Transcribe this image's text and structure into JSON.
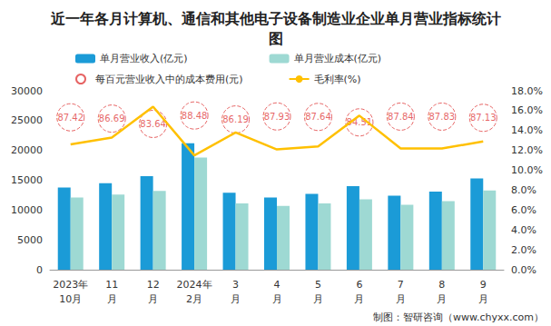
{
  "chart_data": {
    "type": "bar",
    "title": "近一年各月计算机、通信和其他电子设备制造业企业单月营业指标统计图",
    "categories": [
      "2023年\n10月",
      "11\n月",
      "12\n月",
      "2024年\n2月",
      "3\n月",
      "4\n月",
      "5\n月",
      "6\n月",
      "7\n月",
      "8\n月",
      "9\n月"
    ],
    "series": [
      {
        "name": "单月营业收入(亿元)",
        "type": "bar",
        "color": "#1b9bd7",
        "values": [
          13800,
          14500,
          15700,
          21200,
          12900,
          12100,
          12700,
          14000,
          12400,
          13100,
          15300
        ]
      },
      {
        "name": "单月营业成本(亿元)",
        "type": "bar",
        "color": "#9ed9d3",
        "values": [
          12100,
          12600,
          13200,
          18800,
          11100,
          10700,
          11100,
          11800,
          10900,
          11500,
          13300
        ]
      },
      {
        "name": "每百元营业收入中的成本费用(元)",
        "type": "scatter",
        "color": "#e03c3c",
        "marker": "circle",
        "line_style": "dashed",
        "data_labels": true,
        "values": [
          87.42,
          86.69,
          83.64,
          88.48,
          86.19,
          87.93,
          87.64,
          84.51,
          87.84,
          87.83,
          87.13
        ]
      },
      {
        "name": "毛利率(%)",
        "type": "line",
        "color": "#ffc000",
        "axis": "y2",
        "values": [
          12.6,
          13.3,
          16.4,
          11.5,
          13.8,
          12.1,
          12.4,
          15.5,
          12.2,
          12.2,
          12.9
        ]
      }
    ],
    "ylim": [
      0,
      30000
    ],
    "yticks": [
      0,
      5000,
      10000,
      15000,
      20000,
      25000,
      30000
    ],
    "y2lim": [
      0,
      18
    ],
    "y2ticks": [
      {
        "value": 0,
        "label": "0.0%"
      },
      {
        "value": 2,
        "label": "2.0%"
      },
      {
        "value": 4,
        "label": "4.0%"
      },
      {
        "value": 6,
        "label": "6.0%"
      },
      {
        "value": 8,
        "label": "8.0%"
      },
      {
        "value": 10,
        "label": "10.0%"
      },
      {
        "value": 12,
        "label": "12.0%"
      },
      {
        "value": 14,
        "label": "14.0%"
      },
      {
        "value": 16,
        "label": "16.0%"
      },
      {
        "value": 18,
        "label": "18.0%"
      }
    ],
    "grid": false,
    "legend": "top",
    "source": "制图：智研咨询（www.chyxx.com）"
  }
}
